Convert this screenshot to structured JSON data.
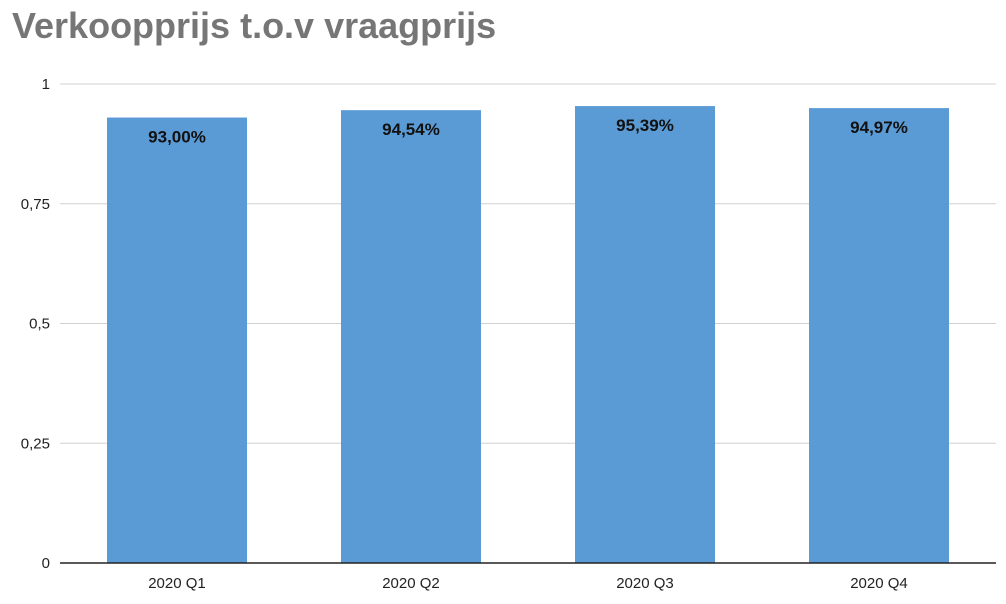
{
  "chart_data": {
    "type": "bar",
    "title": "Verkoopprijs t.o.v vraagprijs",
    "categories": [
      "2020 Q1",
      "2020 Q2",
      "2020 Q3",
      "2020 Q4"
    ],
    "values": [
      0.93,
      0.9454,
      0.9539,
      0.9497
    ],
    "data_labels": [
      "93,00%",
      "94,54%",
      "95,39%",
      "94,97%"
    ],
    "yticks": [
      0,
      0.25,
      0.5,
      0.75,
      1
    ],
    "ytick_labels": [
      "0",
      "0,25",
      "0,5",
      "0,75",
      "1"
    ],
    "ylim": [
      0,
      1
    ],
    "grid": true,
    "bar_color": "#5b9bd5"
  }
}
